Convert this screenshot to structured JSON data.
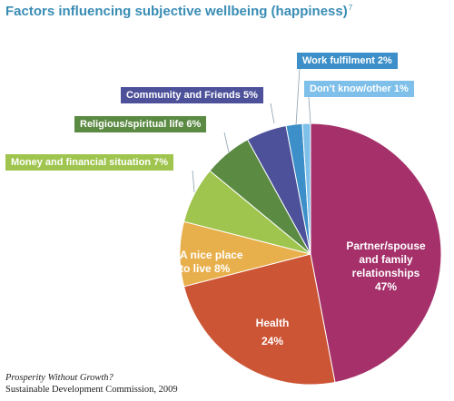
{
  "title": "Factors influencing subjective wellbeing (happiness)",
  "title_note": "7",
  "chart_data": {
    "type": "pie",
    "slices": [
      {
        "key": "partner",
        "label": "Partner/spouse\nand family\nrelationships\n47%",
        "value": 47,
        "color": "#a5306a"
      },
      {
        "key": "health",
        "label": "Health\n24%",
        "value": 24,
        "color": "#cc5535"
      },
      {
        "key": "place",
        "label": "A nice place\nto live  8%",
        "value": 8,
        "color": "#e8b04c"
      },
      {
        "key": "money",
        "label": "Money and financial situation 7%",
        "value": 7,
        "color": "#9fc54e"
      },
      {
        "key": "religious",
        "label": "Religious/spiritual life 6%",
        "value": 6,
        "color": "#5b8a43"
      },
      {
        "key": "community",
        "label": "Community and Friends 5%",
        "value": 5,
        "color": "#4d519a"
      },
      {
        "key": "work",
        "label": "Work fulfilment 2%",
        "value": 2,
        "color": "#3c8fc8"
      },
      {
        "key": "dontknow",
        "label": "Don’t know/other 1%",
        "value": 1,
        "color": "#7ec0ea"
      }
    ]
  },
  "source": {
    "title": "Prosperity Without Growth?",
    "credit": "Sustainable Development Commission, 2009"
  }
}
